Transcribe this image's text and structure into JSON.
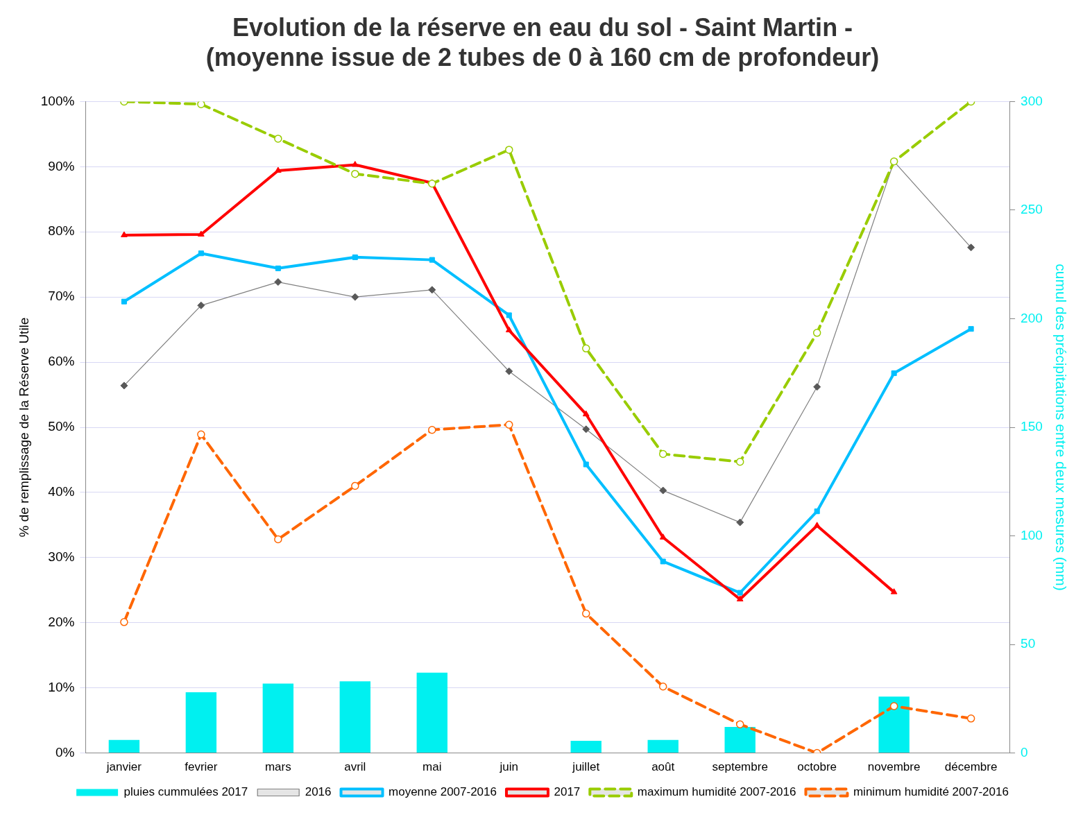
{
  "chart_data": {
    "type": "line",
    "title": [
      "Evolution de la réserve en eau du sol - Saint Martin -",
      "(moyenne issue de 2 tubes de 0 à 160 cm de profondeur)"
    ],
    "ylabel": "% de remplissage de la Réserve Utile",
    "y2label": "cumul des précipitations entre deux mesures (mm)",
    "categories": [
      "janvier",
      "fevrier",
      "mars",
      "avril",
      "mai",
      "juin",
      "juillet",
      "août",
      "septembre",
      "octobre",
      "novembre",
      "décembre"
    ],
    "series": [
      {
        "name": "pluies cummulées 2017",
        "type": "bar",
        "axis": "y2",
        "color": "#00f0f0",
        "values": [
          6,
          28,
          32,
          33,
          37,
          null,
          5.6,
          6,
          12,
          null,
          26,
          null
        ]
      },
      {
        "name": "2016",
        "color": "#808080",
        "marker": "diamond",
        "line_style": "solid",
        "values": [
          56.4,
          68.7,
          72.3,
          70,
          71.1,
          58.6,
          49.7,
          40.3,
          35.4,
          56.2,
          90.8,
          77.6
        ]
      },
      {
        "name": "moyenne 2007-2016",
        "color": "#00bfff",
        "marker": "square",
        "line_style": "solid",
        "values": [
          69.3,
          76.7,
          74.4,
          76.1,
          75.7,
          67.2,
          44.3,
          29.4,
          24.6,
          37.1,
          58.3,
          65.1
        ]
      },
      {
        "name": "2017",
        "color": "#ff0000",
        "marker": "triangle",
        "line_style": "solid",
        "values": [
          79.5,
          79.6,
          89.4,
          90.3,
          87.5,
          64.9,
          52,
          33.1,
          23.6,
          34.9,
          24.7,
          null
        ]
      },
      {
        "name": "maximum humidité 2007-2016",
        "color": "#99cc00",
        "marker": "circle",
        "line_style": "dashed",
        "values": [
          100,
          99.6,
          94.3,
          88.9,
          87.4,
          92.6,
          62.1,
          45.9,
          44.7,
          64.5,
          90.8,
          100
        ]
      },
      {
        "name": "minimum humidité 2007-2016",
        "color": "#ff6600",
        "marker": "circle",
        "line_style": "dashed",
        "values": [
          20.1,
          48.9,
          32.8,
          41,
          49.6,
          50.4,
          21.4,
          10.2,
          4.4,
          0,
          7.2,
          5.3
        ]
      }
    ],
    "ylim": [
      0,
      100
    ],
    "yticks": [
      {
        "value": 0,
        "label": "0%"
      },
      {
        "value": 10,
        "label": "10%"
      },
      {
        "value": 20,
        "label": "20%"
      },
      {
        "value": 30,
        "label": "30%"
      },
      {
        "value": 40,
        "label": "40%"
      },
      {
        "value": 50,
        "label": "50%"
      },
      {
        "value": 60,
        "label": "60%"
      },
      {
        "value": 70,
        "label": "70%"
      },
      {
        "value": 80,
        "label": "80%"
      },
      {
        "value": 90,
        "label": "90%"
      },
      {
        "value": 100,
        "label": "100%"
      }
    ],
    "y2lim": [
      0,
      300
    ],
    "y2ticks": [
      0,
      50,
      100,
      150,
      200,
      250,
      300
    ],
    "grid": "y",
    "legend": "bottom"
  }
}
